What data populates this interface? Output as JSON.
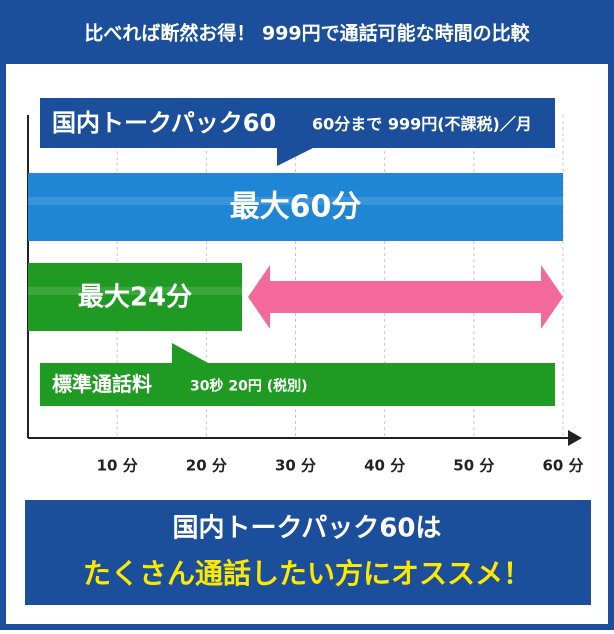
{
  "chart_data": {
    "type": "bar",
    "orientation": "horizontal",
    "title": "比べれば断然お得！ 999円で通話可能な時間の比較",
    "categories": [
      "国内トークパック60",
      "標準通話料"
    ],
    "category_notes": [
      "60分まで 999円(不課税)／月",
      "30秒 20円 (税別)"
    ],
    "values": [
      60,
      24
    ],
    "value_labels": [
      "最大60分",
      "最大24分"
    ],
    "colors": [
      "#1f86d6",
      "#1f9a22"
    ],
    "note_colors": [
      "#1b4f9b",
      "#1f9a22"
    ],
    "arrow_color": "#f2699a",
    "xlim": [
      0,
      60
    ],
    "xticks": [
      {
        "value": 10,
        "label": "10 分"
      },
      {
        "value": 20,
        "label": "20 分"
      },
      {
        "value": 30,
        "label": "30 分"
      },
      {
        "value": 40,
        "label": "40 分"
      },
      {
        "value": 50,
        "label": "50 分"
      },
      {
        "value": 60,
        "label": "60 分"
      }
    ],
    "grid": true,
    "footer": [
      "国内トークパック60は",
      "たくさん通話したい方にオススメ！"
    ]
  }
}
